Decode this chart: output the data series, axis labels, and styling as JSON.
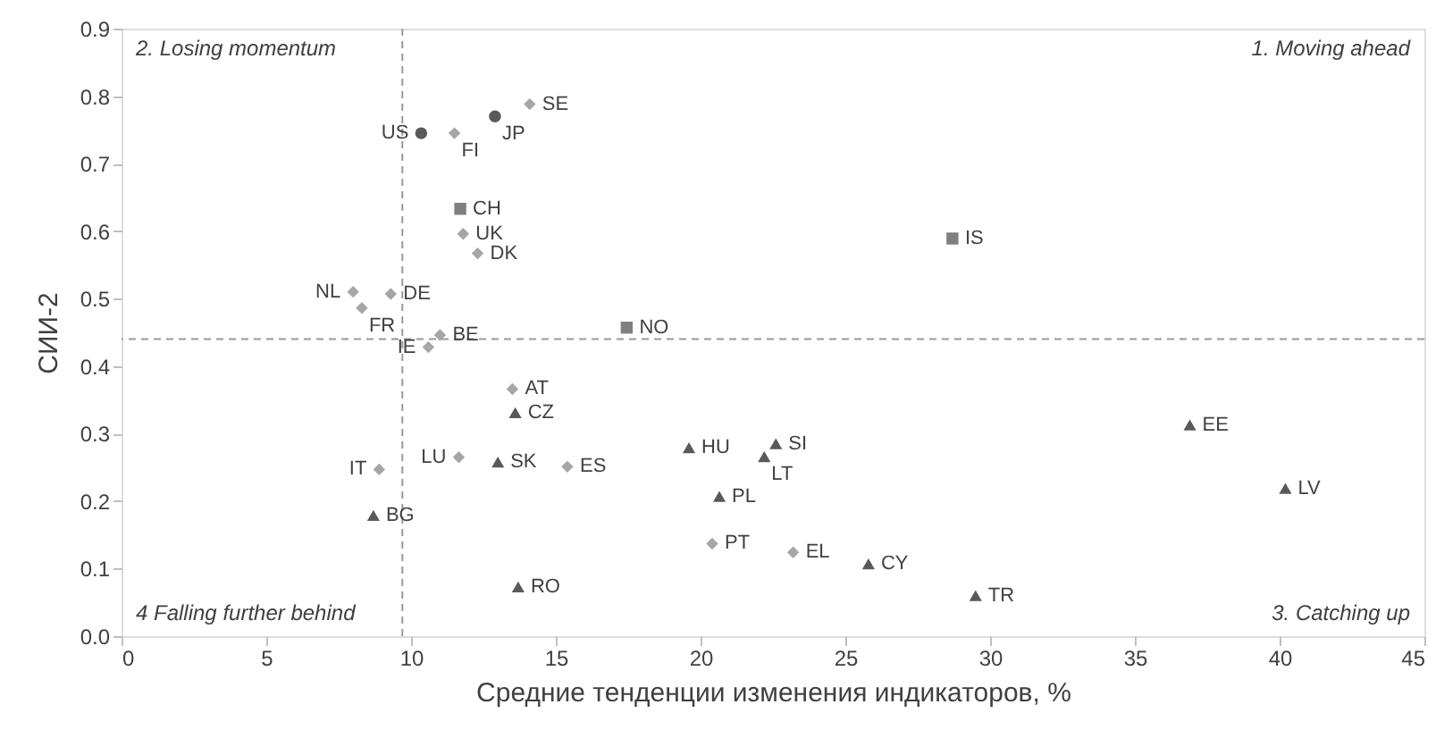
{
  "chart_data": {
    "type": "scatter",
    "xlabel": "Средние тенденции изменения индикаторов, %",
    "ylabel": "СИИ-2",
    "xlim": [
      0,
      45
    ],
    "xticks": [
      0,
      5,
      10,
      15,
      20,
      25,
      30,
      35,
      40,
      45
    ],
    "ylim": [
      0,
      0.9
    ],
    "yticks": [
      {
        "value": 0,
        "label": "0.0"
      },
      0.1,
      0.2,
      0.3,
      0.4,
      0.5,
      0.6,
      0.7,
      0.8,
      0.9
    ],
    "grid": false,
    "series": [
      {
        "marker": "circle",
        "color": "#595959",
        "x": [
          10.35,
          12.9
        ],
        "values": [
          0.745,
          0.77
        ]
      },
      {
        "marker": "diamond",
        "color": "#a6a6a6",
        "x": [
          11.5,
          14.1,
          11.8,
          12.3,
          8.0,
          9.3,
          8.3,
          11.0,
          10.6,
          13.5,
          11.65,
          15.4,
          8.9,
          20.4,
          23.2
        ],
        "values": [
          0.745,
          0.788,
          0.596,
          0.567,
          0.51,
          0.507,
          0.486,
          0.446,
          0.428,
          0.366,
          0.265,
          0.251,
          0.247,
          0.137,
          0.124
        ]
      },
      {
        "marker": "square",
        "color": "#7f7f7f",
        "x": [
          11.7,
          17.45,
          28.7
        ],
        "values": [
          0.633,
          0.457,
          0.589
        ]
      },
      {
        "marker": "triangle",
        "color": "#595959",
        "x": [
          13.6,
          13.0,
          8.7,
          13.7,
          19.6,
          20.65,
          22.6,
          22.2,
          36.9,
          40.2,
          25.8,
          29.5
        ],
        "values": [
          0.331,
          0.258,
          0.179,
          0.073,
          0.279,
          0.207,
          0.285,
          0.266,
          0.313,
          0.219,
          0.107,
          0.06
        ]
      }
    ],
    "ref_lines": [
      {
        "axis": "x",
        "value": 9.7,
        "color": "#999999",
        "line_style": "dashed"
      },
      {
        "axis": "y",
        "value": 0.44,
        "color": "#999999",
        "line_style": "dashed"
      }
    ],
    "annotations": [
      "2. Losing momentum",
      "1. Moving ahead",
      "3. Catching up",
      "4 Falling further behind",
      {
        "text": "US",
        "x": 10.35,
        "y": 0.745
      },
      {
        "text": "JP",
        "x": 12.9,
        "y": 0.77
      },
      {
        "text": "SE",
        "x": 14.1,
        "y": 0.788
      },
      {
        "text": "FI",
        "x": 11.5,
        "y": 0.745
      },
      {
        "text": "CH",
        "x": 11.7,
        "y": 0.633
      },
      {
        "text": "UK",
        "x": 11.8,
        "y": 0.596
      },
      {
        "text": "DK",
        "x": 12.3,
        "y": 0.567
      },
      {
        "text": "DE",
        "x": 9.3,
        "y": 0.507
      },
      {
        "text": "NL",
        "x": 8.0,
        "y": 0.51
      },
      {
        "text": "FR",
        "x": 8.3,
        "y": 0.486
      },
      {
        "text": "BE",
        "x": 11.0,
        "y": 0.446
      },
      {
        "text": "IE",
        "x": 10.6,
        "y": 0.428
      },
      {
        "text": "NO",
        "x": 17.45,
        "y": 0.457
      },
      {
        "text": "AT",
        "x": 13.5,
        "y": 0.366
      },
      {
        "text": "CZ",
        "x": 13.6,
        "y": 0.331
      },
      {
        "text": "LU",
        "x": 11.65,
        "y": 0.265
      },
      {
        "text": "SK",
        "x": 13.0,
        "y": 0.258
      },
      {
        "text": "ES",
        "x": 15.4,
        "y": 0.251
      },
      {
        "text": "IT",
        "x": 8.9,
        "y": 0.247
      },
      {
        "text": "BG",
        "x": 8.7,
        "y": 0.179
      },
      {
        "text": "RO",
        "x": 13.7,
        "y": 0.073
      },
      {
        "text": "HU",
        "x": 19.6,
        "y": 0.279
      },
      {
        "text": "PL",
        "x": 20.65,
        "y": 0.207
      },
      {
        "text": "PT",
        "x": 20.4,
        "y": 0.137
      },
      {
        "text": "SI",
        "x": 22.6,
        "y": 0.285
      },
      {
        "text": "LT",
        "x": 22.2,
        "y": 0.266
      },
      {
        "text": "EE",
        "x": 36.9,
        "y": 0.313
      },
      {
        "text": "LV",
        "x": 40.2,
        "y": 0.219
      },
      {
        "text": "IS",
        "x": 28.7,
        "y": 0.589
      },
      {
        "text": "EL",
        "x": 23.2,
        "y": 0.124
      },
      {
        "text": "CY",
        "x": 25.8,
        "y": 0.107
      },
      {
        "text": "TR",
        "x": 29.5,
        "y": 0.06
      }
    ]
  }
}
